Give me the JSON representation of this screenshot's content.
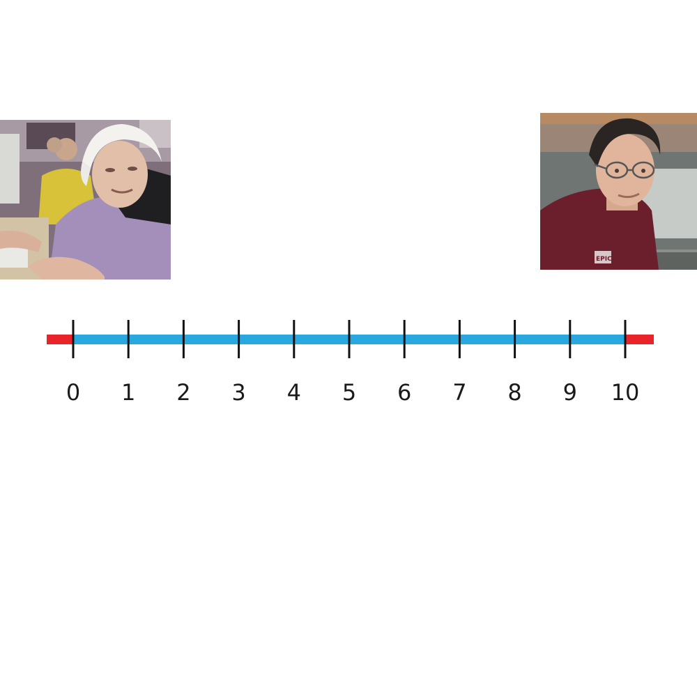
{
  "images": {
    "left": {
      "subject": "elderly-woman-at-computer"
    },
    "right": {
      "subject": "man-with-glasses-portrait",
      "shirt_logo_text": "EPIC"
    }
  },
  "number_line": {
    "min": 0,
    "max": 10,
    "step": 1,
    "tick_labels": [
      "0",
      "1",
      "2",
      "3",
      "4",
      "5",
      "6",
      "7",
      "8",
      "9",
      "10"
    ],
    "colors": {
      "line": "#29a8e0",
      "overflow": "#e8232a",
      "ticks": "#111111"
    }
  }
}
